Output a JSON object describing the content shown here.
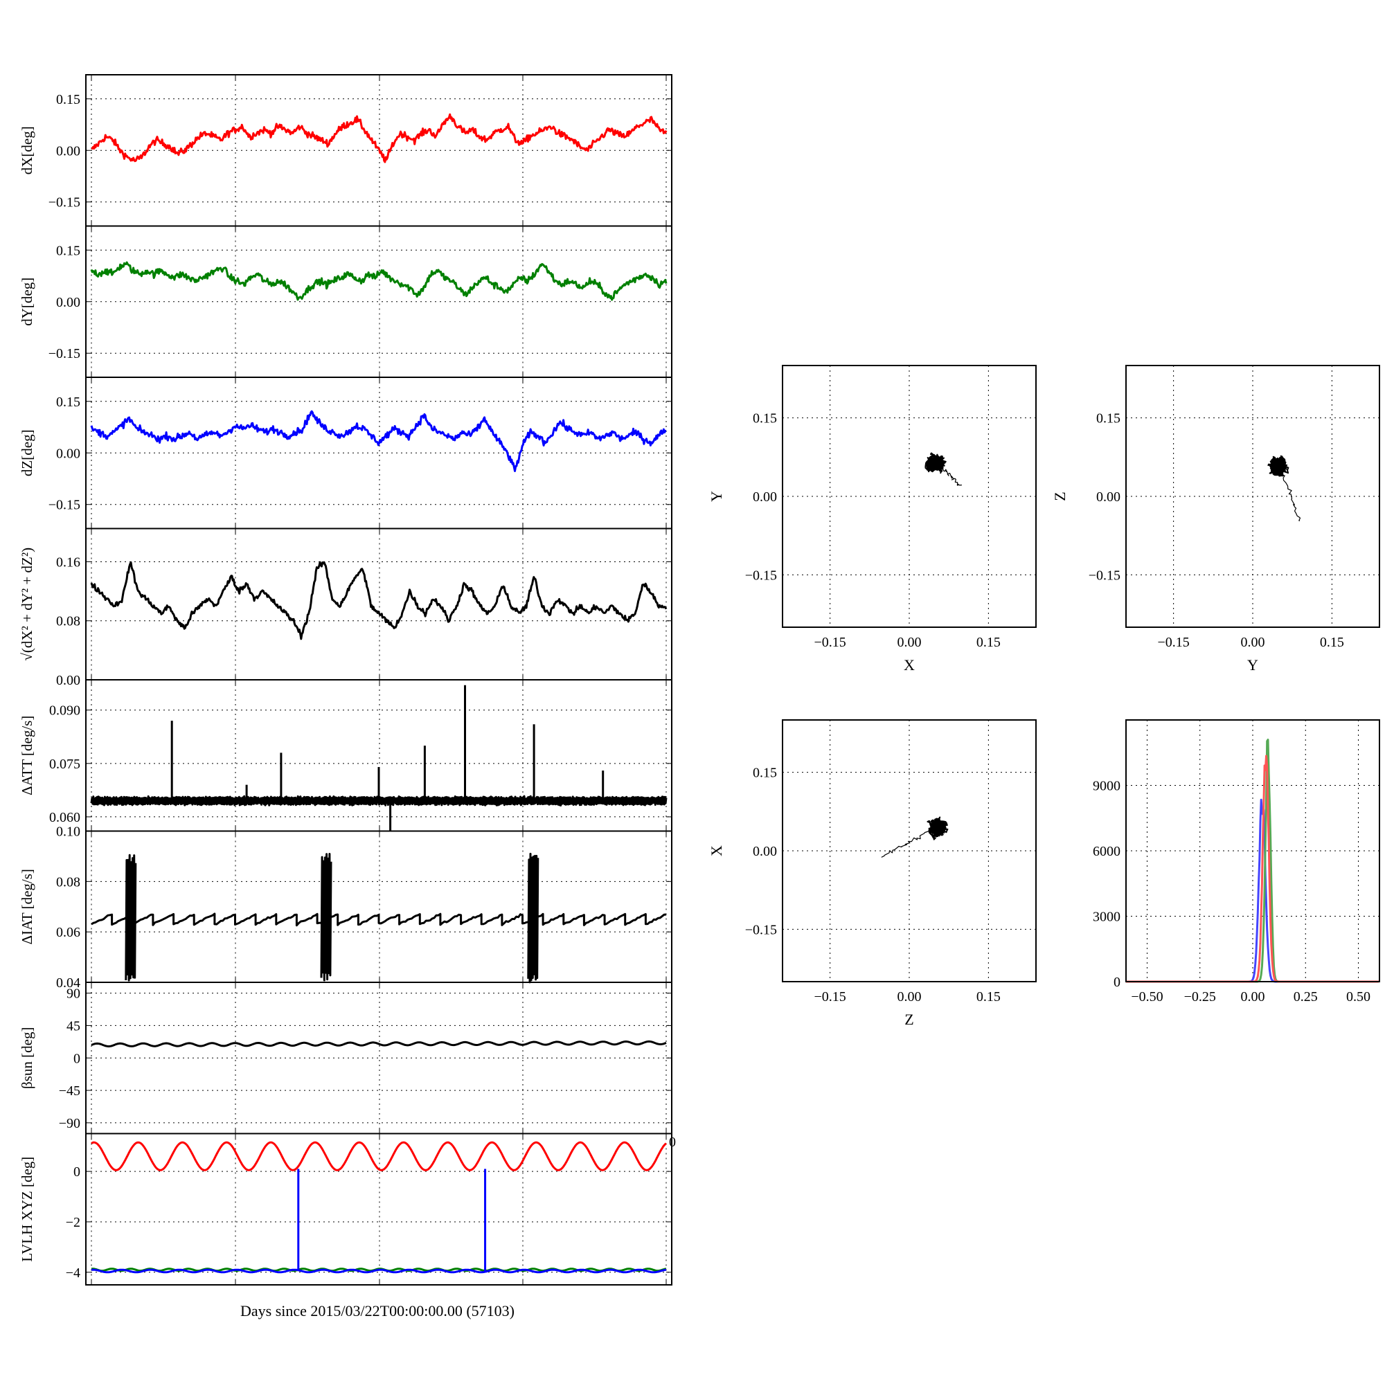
{
  "figure": {
    "x_label": "Days since 2015/03/22T00:00:00.00 (57103)",
    "x_tick_labels": [
      "0"
    ]
  },
  "chart_data": [
    {
      "type": "line",
      "ylabel": "dX[deg]",
      "yticks": [
        0.15,
        0.0,
        -0.15
      ],
      "ytick_labels": [
        "0.15",
        "0.00",
        "−0.15"
      ],
      "ylim": [
        -0.22,
        0.22
      ],
      "series": [
        {
          "color": "#ff0000",
          "values": [
            0.0,
            0.02,
            0.04,
            0.03,
            0.0,
            -0.02,
            -0.03,
            -0.02,
            0.01,
            0.03,
            0.02,
            0.01,
            -0.01,
            0.0,
            0.02,
            0.04,
            0.05,
            0.04,
            0.03,
            0.05,
            0.06,
            0.07,
            0.04,
            0.05,
            0.06,
            0.05,
            0.07,
            0.06,
            0.05,
            0.07,
            0.05,
            0.04,
            0.03,
            0.02,
            0.05,
            0.07,
            0.08,
            0.09,
            0.06,
            0.03,
            0.0,
            -0.03,
            0.02,
            0.05,
            0.04,
            0.03,
            0.05,
            0.06,
            0.04,
            0.08,
            0.1,
            0.07,
            0.05,
            0.06,
            0.04,
            0.03,
            0.05,
            0.06,
            0.07,
            0.03,
            0.02,
            0.04,
            0.05,
            0.06,
            0.07,
            0.05,
            0.04,
            0.03,
            0.01,
            0.0,
            0.02,
            0.04,
            0.06,
            0.05,
            0.04,
            0.05,
            0.07,
            0.08,
            0.09,
            0.06,
            0.05
          ]
        }
      ]
    },
    {
      "type": "line",
      "ylabel": "dY[deg]",
      "yticks": [
        0.15,
        0.0,
        -0.15
      ],
      "ytick_labels": [
        "0.15",
        "0.00",
        "−0.15"
      ],
      "ylim": [
        -0.22,
        0.22
      ],
      "series": [
        {
          "color": "#008000",
          "values": [
            0.09,
            0.08,
            0.09,
            0.08,
            0.1,
            0.11,
            0.09,
            0.08,
            0.09,
            0.08,
            0.09,
            0.08,
            0.07,
            0.08,
            0.07,
            0.06,
            0.07,
            0.08,
            0.09,
            0.1,
            0.07,
            0.06,
            0.05,
            0.07,
            0.08,
            0.06,
            0.05,
            0.06,
            0.05,
            0.03,
            0.01,
            0.03,
            0.05,
            0.06,
            0.05,
            0.06,
            0.07,
            0.08,
            0.07,
            0.06,
            0.08,
            0.07,
            0.09,
            0.07,
            0.06,
            0.05,
            0.04,
            0.02,
            0.04,
            0.08,
            0.09,
            0.07,
            0.06,
            0.04,
            0.02,
            0.04,
            0.06,
            0.07,
            0.05,
            0.04,
            0.03,
            0.05,
            0.07,
            0.06,
            0.08,
            0.11,
            0.09,
            0.06,
            0.05,
            0.06,
            0.05,
            0.04,
            0.06,
            0.05,
            0.03,
            0.01,
            0.03,
            0.05,
            0.06,
            0.07,
            0.08,
            0.07,
            0.05,
            0.06
          ]
        }
      ]
    },
    {
      "type": "line",
      "ylabel": "dZ[deg]",
      "yticks": [
        0.15,
        0.0,
        -0.15
      ],
      "ytick_labels": [
        "0.15",
        "0.00",
        "−0.15"
      ],
      "ylim": [
        -0.22,
        0.22
      ],
      "series": [
        {
          "color": "#0000ff",
          "values": [
            0.07,
            0.06,
            0.05,
            0.06,
            0.08,
            0.1,
            0.07,
            0.06,
            0.05,
            0.04,
            0.05,
            0.04,
            0.05,
            0.06,
            0.04,
            0.05,
            0.06,
            0.05,
            0.06,
            0.08,
            0.07,
            0.08,
            0.07,
            0.06,
            0.07,
            0.06,
            0.05,
            0.06,
            0.07,
            0.12,
            0.09,
            0.07,
            0.06,
            0.05,
            0.06,
            0.08,
            0.07,
            0.05,
            0.03,
            0.05,
            0.07,
            0.06,
            0.05,
            0.08,
            0.11,
            0.07,
            0.06,
            0.05,
            0.04,
            0.06,
            0.05,
            0.07,
            0.1,
            0.06,
            0.03,
            0.0,
            -0.05,
            0.02,
            0.06,
            0.05,
            0.03,
            0.06,
            0.09,
            0.07,
            0.06,
            0.05,
            0.06,
            0.04,
            0.05,
            0.06,
            0.04,
            0.05,
            0.06,
            0.04,
            0.03,
            0.05,
            0.07
          ]
        }
      ]
    },
    {
      "type": "line",
      "ylabel": "√(dX² + dY² + dZ²)",
      "yticks": [
        0.16,
        0.08,
        0.0
      ],
      "ytick_labels": [
        "0.16",
        "0.08",
        "0.00"
      ],
      "ylim": [
        0.0,
        0.205
      ],
      "series": [
        {
          "color": "#000000",
          "values": [
            0.13,
            0.12,
            0.11,
            0.1,
            0.11,
            0.16,
            0.12,
            0.11,
            0.1,
            0.09,
            0.1,
            0.08,
            0.07,
            0.09,
            0.1,
            0.11,
            0.1,
            0.12,
            0.14,
            0.12,
            0.13,
            0.11,
            0.12,
            0.11,
            0.1,
            0.09,
            0.08,
            0.06,
            0.09,
            0.15,
            0.16,
            0.11,
            0.1,
            0.12,
            0.14,
            0.15,
            0.1,
            0.09,
            0.08,
            0.07,
            0.09,
            0.12,
            0.1,
            0.09,
            0.11,
            0.1,
            0.08,
            0.1,
            0.13,
            0.12,
            0.1,
            0.09,
            0.1,
            0.13,
            0.1,
            0.09,
            0.1,
            0.14,
            0.1,
            0.09,
            0.11,
            0.1,
            0.09,
            0.1,
            0.09,
            0.1,
            0.09,
            0.1,
            0.09,
            0.08,
            0.09,
            0.13,
            0.12,
            0.1,
            0.1
          ]
        }
      ]
    },
    {
      "type": "line",
      "ylabel": "ΔATT [deg/s]",
      "yticks": [
        0.09,
        0.075,
        0.06
      ],
      "ytick_labels": [
        "0.090",
        "0.075",
        "0.060"
      ],
      "ylim": [
        0.056,
        0.0985
      ],
      "baseline": 0.0645,
      "spikes": [
        [
          0.14,
          0.087
        ],
        [
          0.27,
          0.069
        ],
        [
          0.33,
          0.078
        ],
        [
          0.5,
          0.074
        ],
        [
          0.58,
          0.08
        ],
        [
          0.65,
          0.097
        ],
        [
          0.77,
          0.086
        ],
        [
          0.89,
          0.073
        ],
        [
          0.52,
          0.056
        ]
      ],
      "series": [
        {
          "color": "#000000"
        }
      ]
    },
    {
      "type": "line",
      "ylabel": "ΔIAT [deg/s]",
      "yticks": [
        0.1,
        0.08,
        0.06,
        0.04
      ],
      "ytick_labels": [
        "0.10",
        "0.08",
        "0.06",
        "0.04"
      ],
      "ylim": [
        0.04,
        0.1
      ],
      "sawtooth": {
        "low": 0.063,
        "high": 0.067,
        "cycles": 28
      },
      "bursts": [
        [
          0.06,
          0.04,
          0.091
        ],
        [
          0.4,
          0.04,
          0.091
        ],
        [
          0.76,
          0.04,
          0.091
        ]
      ],
      "series": [
        {
          "color": "#000000"
        }
      ]
    },
    {
      "type": "line",
      "ylabel": "βsun [deg]",
      "yticks": [
        90,
        45,
        0,
        -45,
        -90
      ],
      "ytick_labels": [
        "90",
        "45",
        "0",
        "−45",
        "−90"
      ],
      "ylim": [
        -105,
        105
      ],
      "wave": {
        "mean": 18,
        "amplitude": 2,
        "cycles": 25,
        "trend": 3
      },
      "series": [
        {
          "color": "#000000"
        }
      ]
    },
    {
      "type": "line",
      "ylabel": "LVLH XYZ [deg]",
      "yticks": [
        0,
        -2,
        -4
      ],
      "ytick_labels": [
        "0",
        "−2",
        "−4"
      ],
      "ylim": [
        -4.5,
        1.5
      ],
      "series": [
        {
          "color": "#ff0000",
          "wave": {
            "mean": 0.6,
            "amplitude": 0.55,
            "cycles": 13
          }
        },
        {
          "color": "#008000",
          "wave": {
            "mean": -3.9,
            "amplitude": 0.04,
            "cycles": 30
          }
        },
        {
          "color": "#0000ff",
          "wave": {
            "mean": -3.95,
            "amplitude": 0.05,
            "cycles": 20
          },
          "spikes": [
            [
              0.36,
              0.1
            ],
            [
              0.685,
              0.1
            ]
          ]
        }
      ]
    },
    {
      "type": "scatter",
      "xlabel": "X",
      "ylabel": "Y",
      "xlim": [
        -0.24,
        0.24
      ],
      "ylim": [
        -0.25,
        0.25
      ],
      "ticks": [
        -0.15,
        0.0,
        0.15
      ],
      "tick_labels": [
        "−0.15",
        "0.00",
        "0.15"
      ],
      "cloud": {
        "cx": 0.05,
        "cy": 0.065,
        "sx": 0.018,
        "sy": 0.016,
        "tail": [
          0.1,
          0.02
        ]
      }
    },
    {
      "type": "scatter",
      "xlabel": "Y",
      "ylabel": "Z",
      "xlim": [
        -0.24,
        0.24
      ],
      "ylim": [
        -0.25,
        0.25
      ],
      "ticks": [
        -0.15,
        0.0,
        0.15
      ],
      "tick_labels": [
        "−0.15",
        "0.00",
        "0.15"
      ],
      "cloud": {
        "cx": 0.05,
        "cy": 0.06,
        "sx": 0.015,
        "sy": 0.017,
        "tail": [
          0.09,
          -0.05
        ]
      }
    },
    {
      "type": "scatter",
      "xlabel": "Z",
      "ylabel": "X",
      "xlim": [
        -0.24,
        0.24
      ],
      "ylim": [
        -0.25,
        0.25
      ],
      "ticks": [
        -0.15,
        0.0,
        0.15
      ],
      "tick_labels": [
        "−0.15",
        "0.00",
        "0.15"
      ],
      "cloud": {
        "cx": 0.055,
        "cy": 0.045,
        "sx": 0.016,
        "sy": 0.02,
        "tail": [
          -0.05,
          -0.01
        ]
      }
    },
    {
      "type": "histogram",
      "xlim": [
        -0.6,
        0.6
      ],
      "ylim": [
        0,
        12000
      ],
      "xticks": [
        -0.5,
        -0.25,
        0.0,
        0.25,
        0.5
      ],
      "xtick_labels": [
        "−0.50",
        "−0.25",
        "0.00",
        "0.25",
        "0.50"
      ],
      "yticks": [
        0,
        3000,
        6000,
        9000
      ],
      "ytick_labels": [
        "0",
        "3000",
        "6000",
        "9000"
      ],
      "series": [
        {
          "color": "#4444ff",
          "center": 0.045,
          "width": 0.015,
          "peak": 8500
        },
        {
          "color": "#55aa55",
          "center": 0.072,
          "width": 0.012,
          "peak": 11200
        },
        {
          "color": "#ff5555",
          "center": 0.062,
          "width": 0.014,
          "peak": 10400
        }
      ]
    }
  ]
}
